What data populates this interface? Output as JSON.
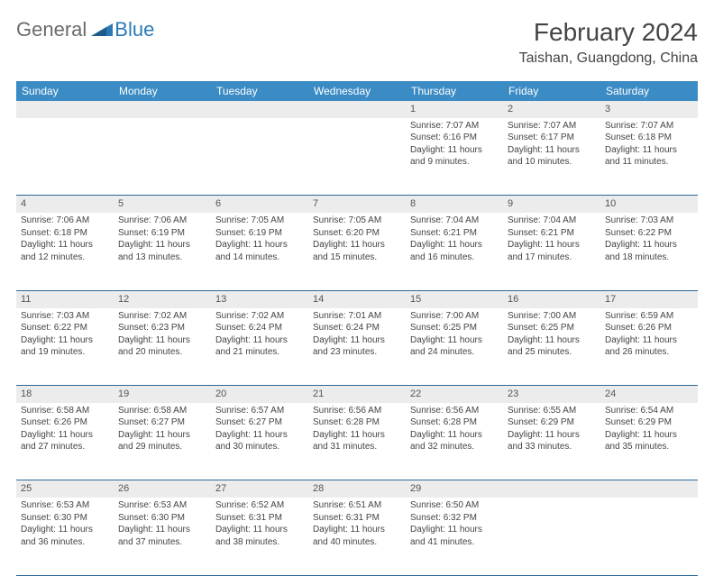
{
  "logo": {
    "general": "General",
    "blue": "Blue"
  },
  "title": "February 2024",
  "location": "Taishan, Guangdong, China",
  "colors": {
    "header_bg": "#3b8bc4",
    "header_text": "#ffffff",
    "daynum_bg": "#ececec",
    "row_border": "#2a6a9a",
    "logo_blue": "#2a7ab8",
    "logo_gray": "#6b6b6b"
  },
  "day_headers": [
    "Sunday",
    "Monday",
    "Tuesday",
    "Wednesday",
    "Thursday",
    "Friday",
    "Saturday"
  ],
  "weeks": [
    {
      "nums": [
        "",
        "",
        "",
        "",
        "1",
        "2",
        "3"
      ],
      "cells": [
        null,
        null,
        null,
        null,
        {
          "sunrise": "Sunrise: 7:07 AM",
          "sunset": "Sunset: 6:16 PM",
          "daylight": "Daylight: 11 hours and 9 minutes."
        },
        {
          "sunrise": "Sunrise: 7:07 AM",
          "sunset": "Sunset: 6:17 PM",
          "daylight": "Daylight: 11 hours and 10 minutes."
        },
        {
          "sunrise": "Sunrise: 7:07 AM",
          "sunset": "Sunset: 6:18 PM",
          "daylight": "Daylight: 11 hours and 11 minutes."
        }
      ]
    },
    {
      "nums": [
        "4",
        "5",
        "6",
        "7",
        "8",
        "9",
        "10"
      ],
      "cells": [
        {
          "sunrise": "Sunrise: 7:06 AM",
          "sunset": "Sunset: 6:18 PM",
          "daylight": "Daylight: 11 hours and 12 minutes."
        },
        {
          "sunrise": "Sunrise: 7:06 AM",
          "sunset": "Sunset: 6:19 PM",
          "daylight": "Daylight: 11 hours and 13 minutes."
        },
        {
          "sunrise": "Sunrise: 7:05 AM",
          "sunset": "Sunset: 6:19 PM",
          "daylight": "Daylight: 11 hours and 14 minutes."
        },
        {
          "sunrise": "Sunrise: 7:05 AM",
          "sunset": "Sunset: 6:20 PM",
          "daylight": "Daylight: 11 hours and 15 minutes."
        },
        {
          "sunrise": "Sunrise: 7:04 AM",
          "sunset": "Sunset: 6:21 PM",
          "daylight": "Daylight: 11 hours and 16 minutes."
        },
        {
          "sunrise": "Sunrise: 7:04 AM",
          "sunset": "Sunset: 6:21 PM",
          "daylight": "Daylight: 11 hours and 17 minutes."
        },
        {
          "sunrise": "Sunrise: 7:03 AM",
          "sunset": "Sunset: 6:22 PM",
          "daylight": "Daylight: 11 hours and 18 minutes."
        }
      ]
    },
    {
      "nums": [
        "11",
        "12",
        "13",
        "14",
        "15",
        "16",
        "17"
      ],
      "cells": [
        {
          "sunrise": "Sunrise: 7:03 AM",
          "sunset": "Sunset: 6:22 PM",
          "daylight": "Daylight: 11 hours and 19 minutes."
        },
        {
          "sunrise": "Sunrise: 7:02 AM",
          "sunset": "Sunset: 6:23 PM",
          "daylight": "Daylight: 11 hours and 20 minutes."
        },
        {
          "sunrise": "Sunrise: 7:02 AM",
          "sunset": "Sunset: 6:24 PM",
          "daylight": "Daylight: 11 hours and 21 minutes."
        },
        {
          "sunrise": "Sunrise: 7:01 AM",
          "sunset": "Sunset: 6:24 PM",
          "daylight": "Daylight: 11 hours and 23 minutes."
        },
        {
          "sunrise": "Sunrise: 7:00 AM",
          "sunset": "Sunset: 6:25 PM",
          "daylight": "Daylight: 11 hours and 24 minutes."
        },
        {
          "sunrise": "Sunrise: 7:00 AM",
          "sunset": "Sunset: 6:25 PM",
          "daylight": "Daylight: 11 hours and 25 minutes."
        },
        {
          "sunrise": "Sunrise: 6:59 AM",
          "sunset": "Sunset: 6:26 PM",
          "daylight": "Daylight: 11 hours and 26 minutes."
        }
      ]
    },
    {
      "nums": [
        "18",
        "19",
        "20",
        "21",
        "22",
        "23",
        "24"
      ],
      "cells": [
        {
          "sunrise": "Sunrise: 6:58 AM",
          "sunset": "Sunset: 6:26 PM",
          "daylight": "Daylight: 11 hours and 27 minutes."
        },
        {
          "sunrise": "Sunrise: 6:58 AM",
          "sunset": "Sunset: 6:27 PM",
          "daylight": "Daylight: 11 hours and 29 minutes."
        },
        {
          "sunrise": "Sunrise: 6:57 AM",
          "sunset": "Sunset: 6:27 PM",
          "daylight": "Daylight: 11 hours and 30 minutes."
        },
        {
          "sunrise": "Sunrise: 6:56 AM",
          "sunset": "Sunset: 6:28 PM",
          "daylight": "Daylight: 11 hours and 31 minutes."
        },
        {
          "sunrise": "Sunrise: 6:56 AM",
          "sunset": "Sunset: 6:28 PM",
          "daylight": "Daylight: 11 hours and 32 minutes."
        },
        {
          "sunrise": "Sunrise: 6:55 AM",
          "sunset": "Sunset: 6:29 PM",
          "daylight": "Daylight: 11 hours and 33 minutes."
        },
        {
          "sunrise": "Sunrise: 6:54 AM",
          "sunset": "Sunset: 6:29 PM",
          "daylight": "Daylight: 11 hours and 35 minutes."
        }
      ]
    },
    {
      "nums": [
        "25",
        "26",
        "27",
        "28",
        "29",
        "",
        ""
      ],
      "cells": [
        {
          "sunrise": "Sunrise: 6:53 AM",
          "sunset": "Sunset: 6:30 PM",
          "daylight": "Daylight: 11 hours and 36 minutes."
        },
        {
          "sunrise": "Sunrise: 6:53 AM",
          "sunset": "Sunset: 6:30 PM",
          "daylight": "Daylight: 11 hours and 37 minutes."
        },
        {
          "sunrise": "Sunrise: 6:52 AM",
          "sunset": "Sunset: 6:31 PM",
          "daylight": "Daylight: 11 hours and 38 minutes."
        },
        {
          "sunrise": "Sunrise: 6:51 AM",
          "sunset": "Sunset: 6:31 PM",
          "daylight": "Daylight: 11 hours and 40 minutes."
        },
        {
          "sunrise": "Sunrise: 6:50 AM",
          "sunset": "Sunset: 6:32 PM",
          "daylight": "Daylight: 11 hours and 41 minutes."
        },
        null,
        null
      ]
    }
  ]
}
